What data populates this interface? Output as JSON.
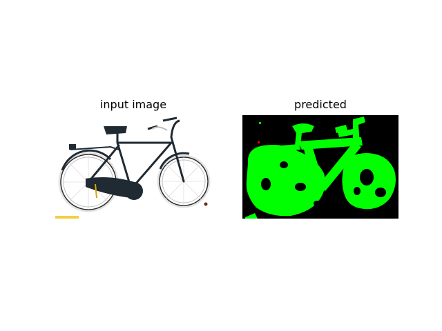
{
  "figure": {
    "panels": [
      {
        "title": "input image"
      },
      {
        "title": "predicted"
      }
    ]
  },
  "colors": {
    "mask_foreground": "#00ff00",
    "mask_background": "#000000",
    "frame": "#1f2a33",
    "wheel_rim": "#c9c9c9"
  }
}
